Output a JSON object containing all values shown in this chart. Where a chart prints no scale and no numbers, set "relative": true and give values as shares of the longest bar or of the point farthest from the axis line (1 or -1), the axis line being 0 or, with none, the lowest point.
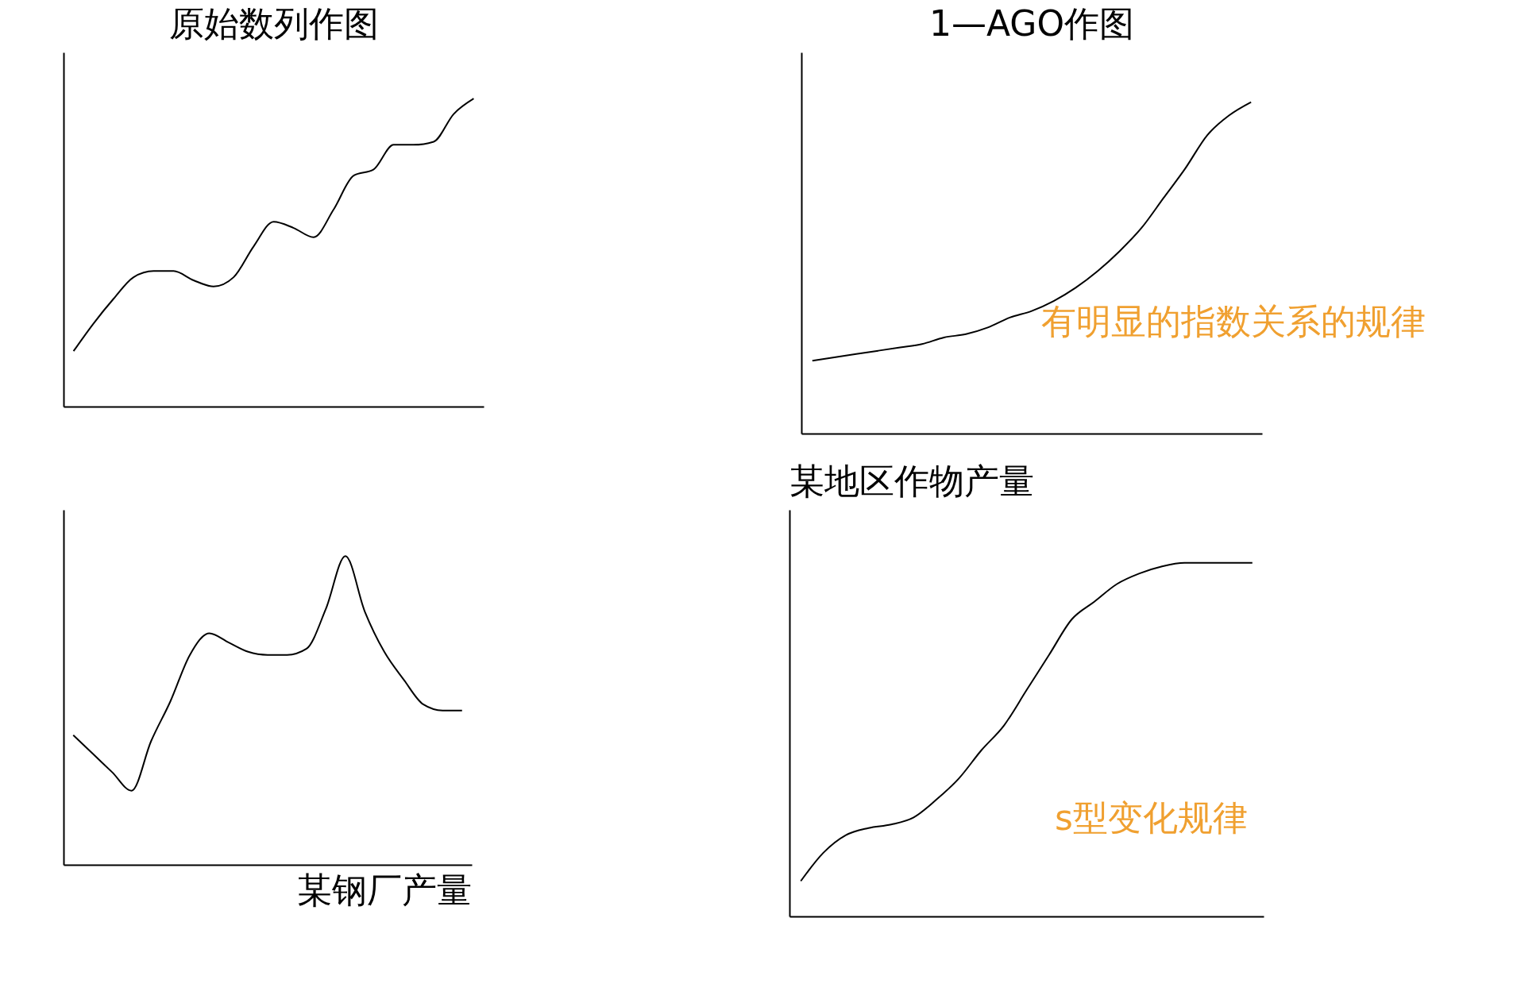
{
  "chart_data": [
    {
      "type": "line",
      "title": "原始数列作图",
      "relative": true,
      "categories": [
        null,
        null,
        null,
        null,
        null,
        null,
        null,
        null,
        null,
        null,
        null,
        null,
        null,
        null,
        null,
        null,
        null,
        null,
        null,
        null,
        null
      ],
      "series": [
        {
          "color": "#000000",
          "values": [
            0.18,
            0.27,
            0.35,
            0.42,
            0.44,
            0.44,
            0.41,
            0.39,
            0.42,
            0.52,
            0.6,
            0.58,
            0.55,
            0.64,
            0.75,
            0.77,
            0.85,
            0.85,
            0.86,
            0.95,
            1
          ]
        }
      ],
      "tick_labels": false,
      "grid": false,
      "legend": false
    },
    {
      "type": "line",
      "title": "1—AGO作图",
      "relative": true,
      "categories": [
        null,
        null,
        null,
        null,
        null,
        null,
        null,
        null,
        null,
        null,
        null,
        null,
        null,
        null,
        null,
        null,
        null,
        null,
        null,
        null,
        null
      ],
      "series": [
        {
          "color": "#000000",
          "values": [
            0.22,
            0.23,
            0.24,
            0.25,
            0.26,
            0.27,
            0.29,
            0.3,
            0.32,
            0.35,
            0.37,
            0.4,
            0.44,
            0.49,
            0.55,
            0.62,
            0.71,
            0.8,
            0.9,
            0.96,
            1
          ]
        }
      ],
      "annotations": [
        "有明显的指数关系的规律"
      ],
      "tick_labels": false,
      "grid": false,
      "legend": false
    },
    {
      "type": "line",
      "title": "某钢厂产量",
      "relative": true,
      "categories": [
        null,
        null,
        null,
        null,
        null,
        null,
        null,
        null,
        null,
        null,
        null,
        null,
        null,
        null,
        null,
        null,
        null,
        null,
        null,
        null,
        null
      ],
      "series": [
        {
          "color": "#000000",
          "values": [
            0.42,
            0.36,
            0.3,
            0.24,
            0.4,
            0.53,
            0.68,
            0.75,
            0.72,
            0.69,
            0.68,
            0.68,
            0.7,
            0.83,
            1,
            0.82,
            0.69,
            0.6,
            0.52,
            0.5,
            0.5
          ]
        }
      ],
      "tick_labels": false,
      "grid": false,
      "legend": false
    },
    {
      "type": "line",
      "title": "某地区作物产量",
      "relative": true,
      "categories": [
        null,
        null,
        null,
        null,
        null,
        null,
        null,
        null,
        null,
        null,
        null,
        null,
        null,
        null,
        null,
        null,
        null,
        null,
        null,
        null,
        null
      ],
      "series": [
        {
          "color": "#000000",
          "values": [
            0.1,
            0.18,
            0.23,
            0.25,
            0.26,
            0.28,
            0.33,
            0.39,
            0.47,
            0.54,
            0.64,
            0.74,
            0.84,
            0.89,
            0.94,
            0.97,
            0.99,
            1,
            1,
            1,
            1
          ]
        }
      ],
      "annotations": [
        "s型变化规律"
      ],
      "tick_labels": false,
      "grid": false,
      "legend": false
    }
  ]
}
